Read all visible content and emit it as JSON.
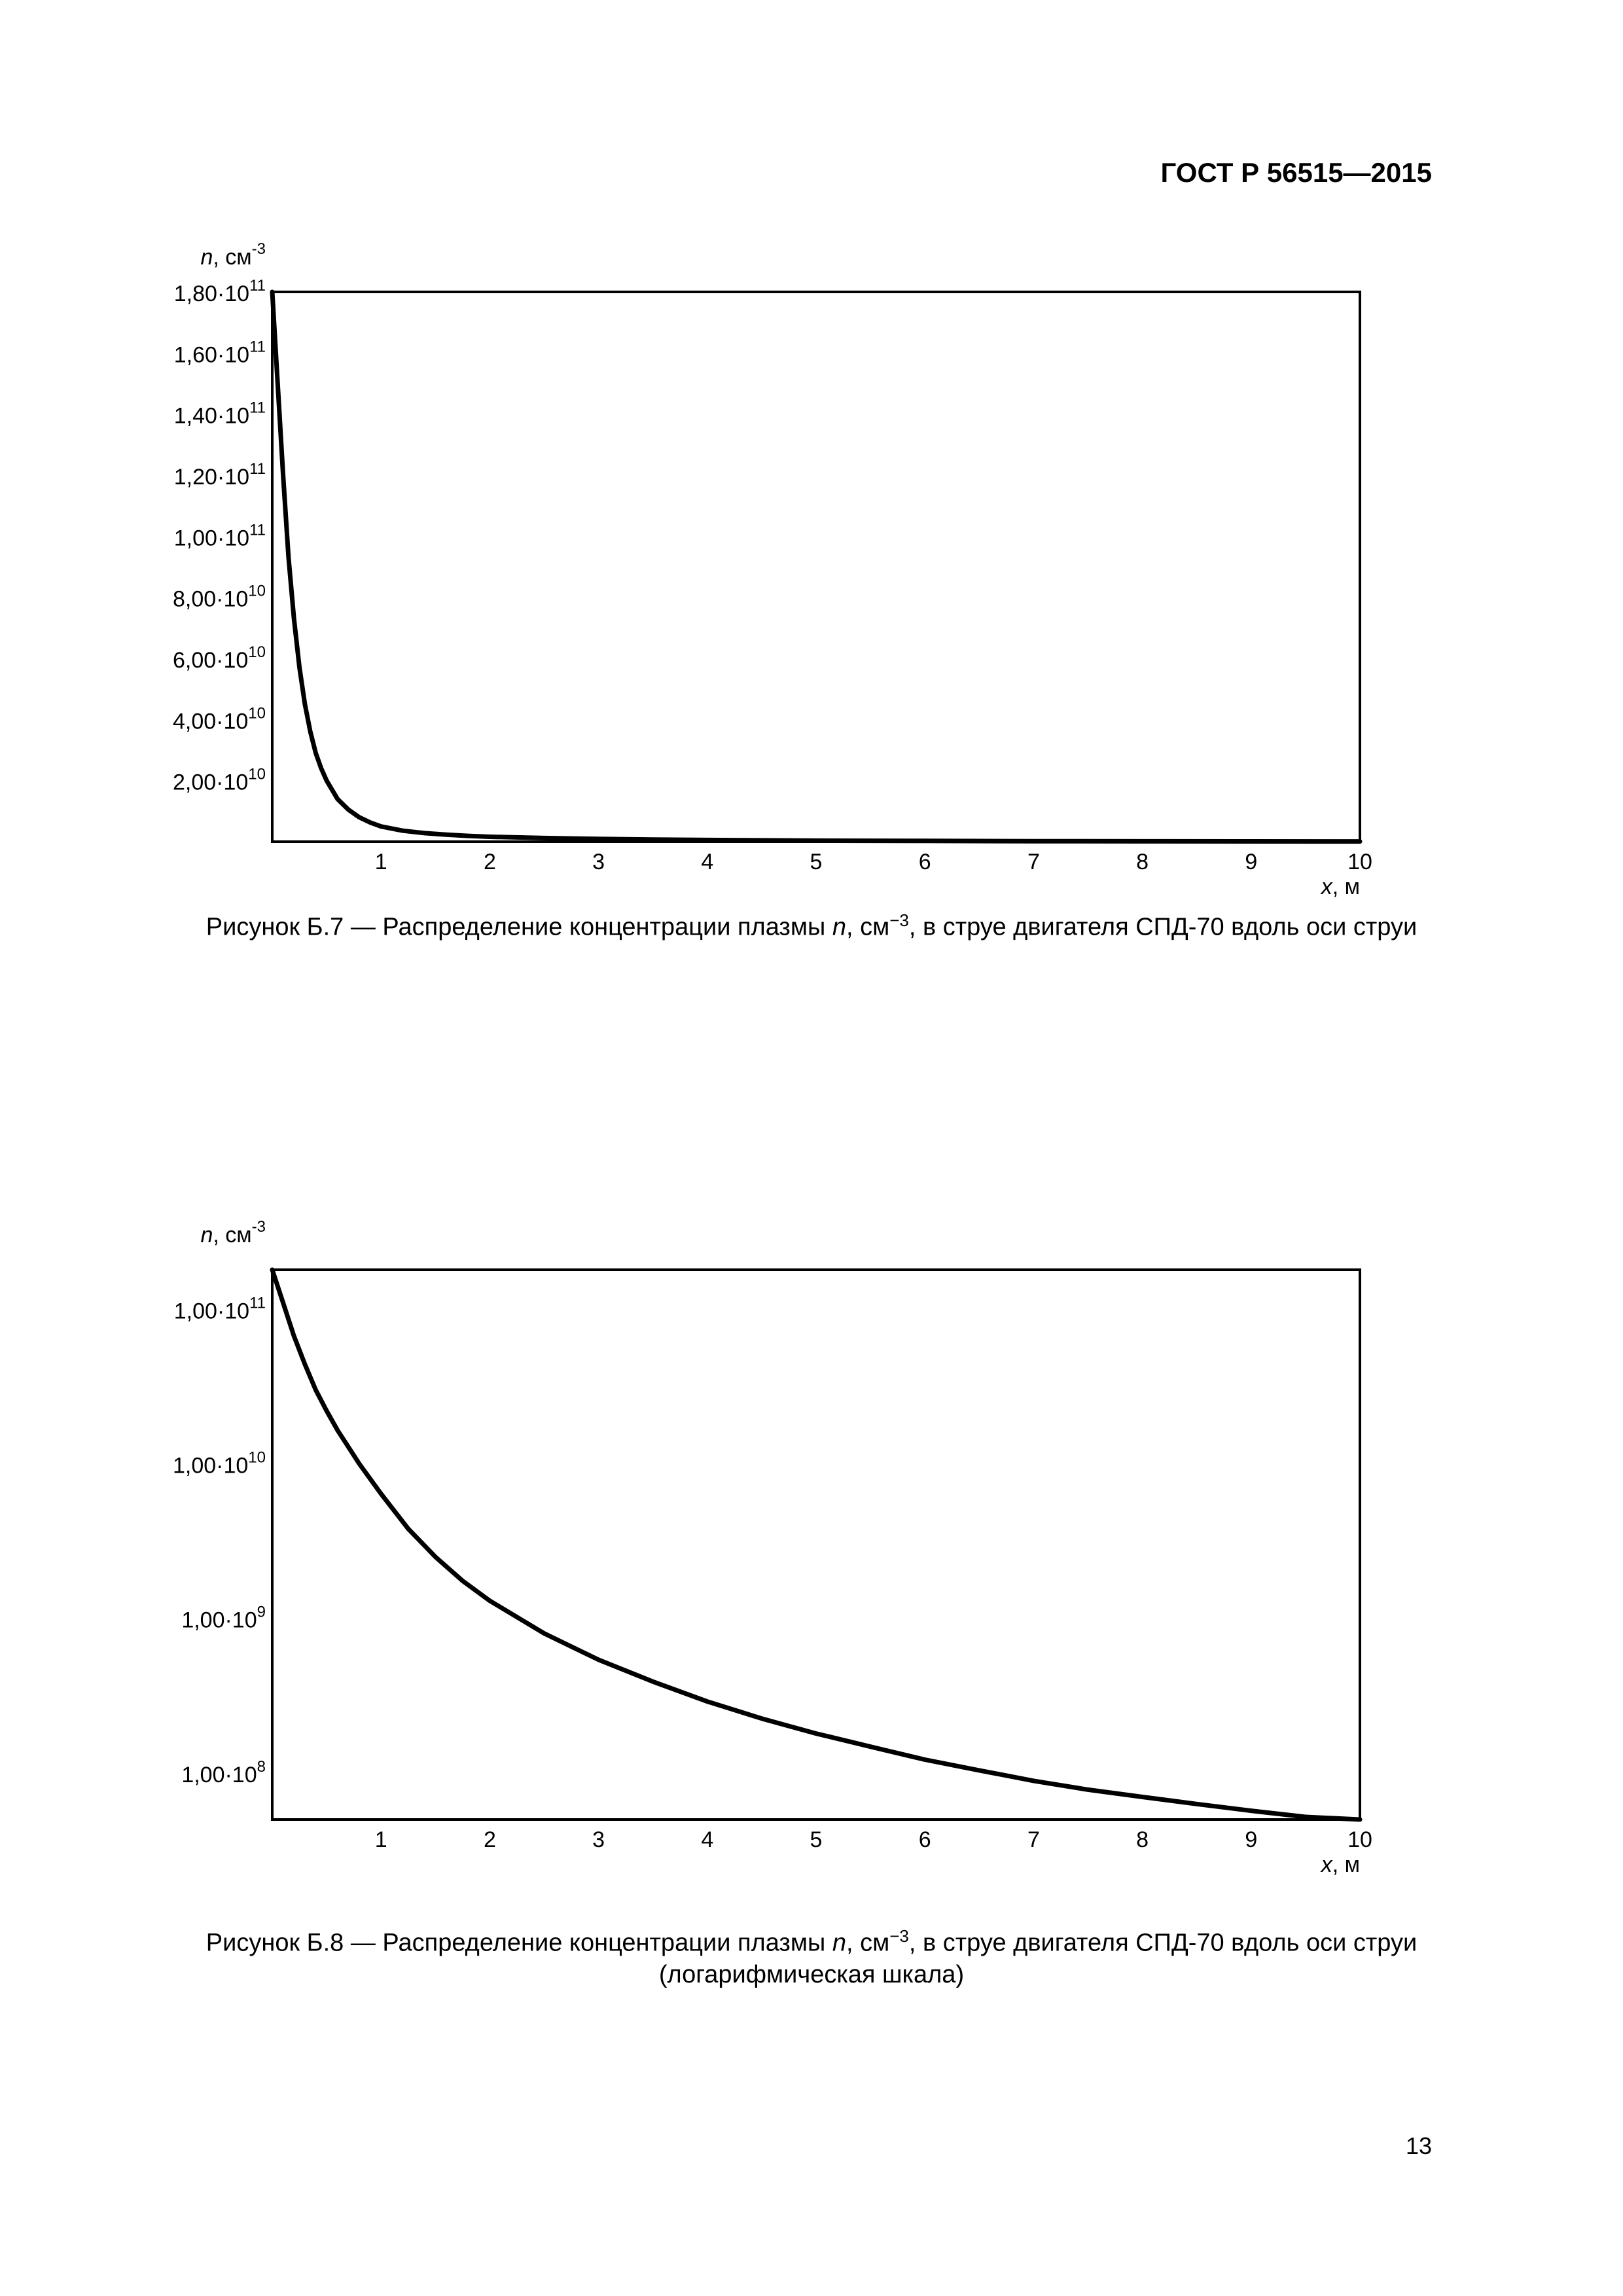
{
  "page": {
    "header": "ГОСТ Р 56515—2015",
    "page_number": "13"
  },
  "figures": [
    {
      "caption_prefix": "Рисунок  Б.7 — Распределение концентрации плазмы ",
      "caption_var": "n",
      "caption_unit": ", см",
      "caption_exp": "−3",
      "caption_suffix": ", в струе двигателя СПД-70 вдоль оси струи",
      "caption_line2": ""
    },
    {
      "caption_prefix": "Рисунок  Б.8 — Распределение концентрации плазмы ",
      "caption_var": "n",
      "caption_unit": ", см",
      "caption_exp": "−3",
      "caption_suffix": ", в струе двигателя СПД-70 вдоль оси струи",
      "caption_line2": "(логарифмическая шкала)"
    }
  ],
  "chart_data": [
    {
      "type": "line",
      "title": "",
      "ylabel_var": "n",
      "ylabel_unit": ", см",
      "ylabel_exp": "-3",
      "xlabel_var": "x",
      "xlabel_unit": ", м",
      "yscale": "linear",
      "xlim": [
        0,
        10
      ],
      "ylim": [
        0,
        180000000000
      ],
      "grid": false,
      "x_ticks": [
        {
          "value": 1,
          "label": "1"
        },
        {
          "value": 2,
          "label": "2"
        },
        {
          "value": 3,
          "label": "3"
        },
        {
          "value": 4,
          "label": "4"
        },
        {
          "value": 5,
          "label": "5"
        },
        {
          "value": 6,
          "label": "6"
        },
        {
          "value": 7,
          "label": "7"
        },
        {
          "value": 8,
          "label": "8"
        },
        {
          "value": 9,
          "label": "9"
        },
        {
          "value": 10,
          "label": "10"
        }
      ],
      "y_ticks": [
        {
          "value": 180000000000,
          "mantissa": "1,80·10",
          "exp": "11"
        },
        {
          "value": 160000000000,
          "mantissa": "1,60·10",
          "exp": "11"
        },
        {
          "value": 140000000000,
          "mantissa": "1,40·10",
          "exp": "11"
        },
        {
          "value": 120000000000,
          "mantissa": "1,20·10",
          "exp": "11"
        },
        {
          "value": 100000000000,
          "mantissa": "1,00·10",
          "exp": "11"
        },
        {
          "value": 80000000000,
          "mantissa": "8,00·10",
          "exp": "10"
        },
        {
          "value": 60000000000,
          "mantissa": "6,00·10",
          "exp": "10"
        },
        {
          "value": 40000000000,
          "mantissa": "4,00·10",
          "exp": "10"
        },
        {
          "value": 20000000000,
          "mantissa": "2,00·10",
          "exp": "10"
        }
      ],
      "series": [
        {
          "x": [
            0.0,
            0.05,
            0.1,
            0.15,
            0.2,
            0.25,
            0.3,
            0.35,
            0.4,
            0.45,
            0.5,
            0.6,
            0.7,
            0.8,
            0.9,
            1.0,
            1.2,
            1.4,
            1.6,
            1.8,
            2.0,
            2.5,
            3.0,
            3.5,
            4.0,
            5.0,
            6.0,
            7.0,
            8.0,
            9.0,
            10.0
          ],
          "y": [
            180000000000,
            150000000000,
            120000000000,
            93000000000,
            73000000000,
            57000000000,
            45000000000,
            36000000000,
            29000000000,
            24000000000,
            20000000000,
            14000000000,
            10500000000,
            8000000000,
            6300000000,
            5000000000,
            3600000000,
            2800000000,
            2300000000,
            1900000000,
            1600000000,
            1200000000,
            900000000,
            700000000,
            550000000,
            350000000,
            250000000,
            180000000,
            130000000,
            100000000,
            80000000
          ]
        }
      ]
    },
    {
      "type": "line",
      "title": "",
      "ylabel_var": "n",
      "ylabel_unit": ", см",
      "ylabel_exp": "-3",
      "xlabel_var": "x",
      "xlabel_unit": ", м",
      "yscale": "log",
      "xlim": [
        0,
        10
      ],
      "ylim": [
        50000000,
        180000000000
      ],
      "grid": false,
      "x_ticks": [
        {
          "value": 1,
          "label": "1"
        },
        {
          "value": 2,
          "label": "2"
        },
        {
          "value": 3,
          "label": "3"
        },
        {
          "value": 4,
          "label": "4"
        },
        {
          "value": 5,
          "label": "5"
        },
        {
          "value": 6,
          "label": "6"
        },
        {
          "value": 7,
          "label": "7"
        },
        {
          "value": 8,
          "label": "8"
        },
        {
          "value": 9,
          "label": "9"
        },
        {
          "value": 10,
          "label": "10"
        }
      ],
      "y_ticks": [
        {
          "value": 100000000000,
          "mantissa": "1,00·10",
          "exp": "11"
        },
        {
          "value": 10000000000,
          "mantissa": "1,00·10",
          "exp": "10"
        },
        {
          "value": 1000000000,
          "mantissa": "1,00·10",
          "exp": "9"
        },
        {
          "value": 100000000,
          "mantissa": "1,00·10",
          "exp": "8"
        }
      ],
      "series": [
        {
          "x": [
            0.0,
            0.1,
            0.2,
            0.3,
            0.4,
            0.5,
            0.6,
            0.8,
            1.0,
            1.25,
            1.5,
            1.75,
            2.0,
            2.5,
            3.0,
            3.5,
            4.0,
            4.5,
            5.0,
            5.5,
            6.0,
            6.5,
            7.0,
            7.5,
            8.0,
            8.5,
            9.0,
            9.5,
            10.0
          ],
          "y": [
            180000000000,
            110000000000,
            67000000000,
            44000000000,
            30000000000,
            22000000000,
            16500000000,
            10000000000,
            6400000000,
            3800000000,
            2500000000,
            1750000000,
            1300000000,
            800000000,
            540000000,
            390000000,
            290000000,
            225000000,
            180000000,
            148000000,
            122000000,
            104000000,
            89000000,
            78000000,
            70000000,
            63000000,
            57000000,
            52000000,
            48000000
          ]
        }
      ]
    }
  ]
}
